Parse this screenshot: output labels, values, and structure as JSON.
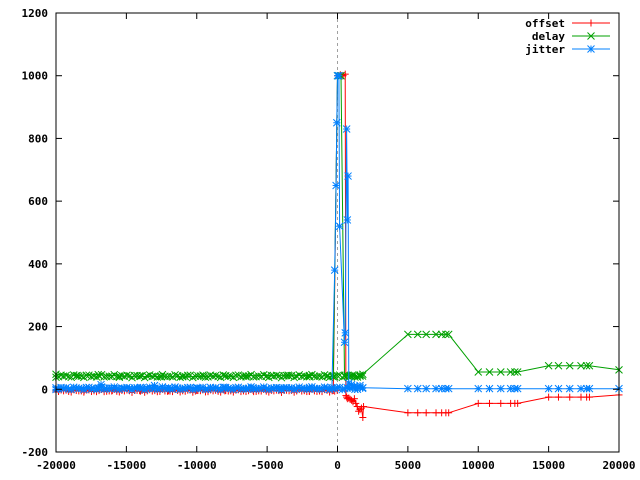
{
  "chart_data": {
    "type": "scatter",
    "xlim": [
      -20000,
      20000
    ],
    "ylim": [
      -200,
      1200
    ],
    "x_ticks": [
      -20000,
      -15000,
      -10000,
      -5000,
      0,
      5000,
      10000,
      15000,
      20000
    ],
    "y_ticks": [
      -200,
      0,
      200,
      400,
      600,
      800,
      1000,
      1200
    ],
    "x_tick_labels": [
      "-20000",
      "-15000",
      "-10000",
      "-5000",
      "0",
      "5000",
      "10000",
      "15000",
      "20000"
    ],
    "y_tick_labels": [
      "-200",
      "0",
      "200",
      "400",
      "600",
      "800",
      "1000",
      "1200"
    ],
    "grid": false,
    "zero_line": {
      "axis": "x",
      "value": 0,
      "style": "dashed"
    },
    "legend": "top-right",
    "series": [
      {
        "name": "offset",
        "color": "#ff0000",
        "marker": "plus",
        "dense_baseline": {
          "x_from": -20000,
          "x_to": 0,
          "y": -5
        },
        "points": [
          [
            -20000,
            -3
          ],
          [
            -18000,
            -5
          ],
          [
            -16000,
            -4
          ],
          [
            -14000,
            -6
          ],
          [
            -12000,
            -5
          ],
          [
            -10000,
            -4
          ],
          [
            -8000,
            -5
          ],
          [
            -6000,
            -3
          ],
          [
            -4000,
            -4
          ],
          [
            -2000,
            -5
          ],
          [
            -300,
            -4
          ],
          [
            0,
            1000
          ],
          [
            100,
            1000
          ],
          [
            200,
            1003
          ],
          [
            300,
            1000
          ],
          [
            400,
            1000
          ],
          [
            550,
            1005
          ],
          [
            600,
            -20
          ],
          [
            650,
            -25
          ],
          [
            700,
            -30
          ],
          [
            800,
            -28
          ],
          [
            900,
            -32
          ],
          [
            1000,
            -35
          ],
          [
            1100,
            -40
          ],
          [
            1200,
            -30
          ],
          [
            1300,
            -45
          ],
          [
            1400,
            -55
          ],
          [
            1500,
            -70
          ],
          [
            1600,
            -65
          ],
          [
            1700,
            -60
          ],
          [
            1800,
            -90
          ],
          [
            1850,
            -55
          ],
          [
            5000,
            -75
          ],
          [
            5700,
            -75
          ],
          [
            6300,
            -75
          ],
          [
            7000,
            -75
          ],
          [
            7400,
            -75
          ],
          [
            7700,
            -75
          ],
          [
            7900,
            -75
          ],
          [
            10000,
            -45
          ],
          [
            10800,
            -45
          ],
          [
            11600,
            -45
          ],
          [
            12300,
            -45
          ],
          [
            12600,
            -45
          ],
          [
            12800,
            -45
          ],
          [
            15000,
            -25
          ],
          [
            15700,
            -25
          ],
          [
            16500,
            -25
          ],
          [
            17300,
            -25
          ],
          [
            17700,
            -25
          ],
          [
            17900,
            -25
          ],
          [
            20000,
            -18
          ]
        ]
      },
      {
        "name": "delay",
        "color": "#00a000",
        "marker": "cross",
        "dense_baseline": {
          "x_from": -20000,
          "x_to": 1800,
          "y": 42
        },
        "points": [
          [
            -20000,
            48
          ],
          [
            -18500,
            44
          ],
          [
            -17000,
            47
          ],
          [
            -15500,
            42
          ],
          [
            -14000,
            41
          ],
          [
            -12500,
            40
          ],
          [
            -11000,
            40
          ],
          [
            -9500,
            41
          ],
          [
            -8000,
            42
          ],
          [
            -6500,
            43
          ],
          [
            -5000,
            44
          ],
          [
            -3500,
            45
          ],
          [
            -2000,
            44
          ],
          [
            -700,
            42
          ],
          [
            -300,
            40
          ],
          [
            0,
            1000
          ],
          [
            100,
            1000
          ],
          [
            250,
            1000
          ],
          [
            500,
            45
          ],
          [
            800,
            40
          ],
          [
            1000,
            42
          ],
          [
            1200,
            45
          ],
          [
            1400,
            40
          ],
          [
            1600,
            42
          ],
          [
            1800,
            48
          ],
          [
            5000,
            175
          ],
          [
            5700,
            175
          ],
          [
            6300,
            175
          ],
          [
            7000,
            175
          ],
          [
            7400,
            175
          ],
          [
            7700,
            175
          ],
          [
            7900,
            175
          ],
          [
            10000,
            55
          ],
          [
            10800,
            55
          ],
          [
            11600,
            55
          ],
          [
            12300,
            55
          ],
          [
            12600,
            55
          ],
          [
            12800,
            55
          ],
          [
            15000,
            75
          ],
          [
            15700,
            75
          ],
          [
            16500,
            75
          ],
          [
            17300,
            75
          ],
          [
            17700,
            75
          ],
          [
            17900,
            75
          ],
          [
            20000,
            62
          ]
        ]
      },
      {
        "name": "jitter",
        "color": "#0080ff",
        "marker": "star",
        "dense_baseline": {
          "x_from": -20000,
          "x_to": 1800,
          "y": 3
        },
        "points": [
          [
            -20000,
            5
          ],
          [
            -17000,
            4
          ],
          [
            -16800,
            15
          ],
          [
            -14000,
            6
          ],
          [
            -13000,
            12
          ],
          [
            -12000,
            5
          ],
          [
            -10000,
            4
          ],
          [
            -8000,
            6
          ],
          [
            -6000,
            5
          ],
          [
            -4000,
            4
          ],
          [
            -2000,
            6
          ],
          [
            -400,
            5
          ],
          [
            -200,
            380
          ],
          [
            -100,
            650
          ],
          [
            -50,
            850
          ],
          [
            0,
            1000
          ],
          [
            100,
            1000
          ],
          [
            150,
            520
          ],
          [
            500,
            150
          ],
          [
            550,
            180
          ],
          [
            650,
            830
          ],
          [
            700,
            540
          ],
          [
            750,
            680
          ],
          [
            800,
            20
          ],
          [
            1000,
            15
          ],
          [
            1200,
            10
          ],
          [
            1400,
            8
          ],
          [
            1600,
            12
          ],
          [
            1800,
            5
          ],
          [
            5000,
            2
          ],
          [
            5700,
            2
          ],
          [
            6300,
            2
          ],
          [
            7000,
            2
          ],
          [
            7400,
            2
          ],
          [
            7700,
            2
          ],
          [
            7900,
            2
          ],
          [
            10000,
            2
          ],
          [
            10800,
            2
          ],
          [
            11600,
            2
          ],
          [
            12300,
            2
          ],
          [
            12600,
            2
          ],
          [
            12800,
            2
          ],
          [
            15000,
            2
          ],
          [
            15700,
            2
          ],
          [
            16500,
            2
          ],
          [
            17300,
            2
          ],
          [
            17700,
            2
          ],
          [
            17900,
            2
          ],
          [
            20000,
            2
          ]
        ]
      }
    ]
  }
}
